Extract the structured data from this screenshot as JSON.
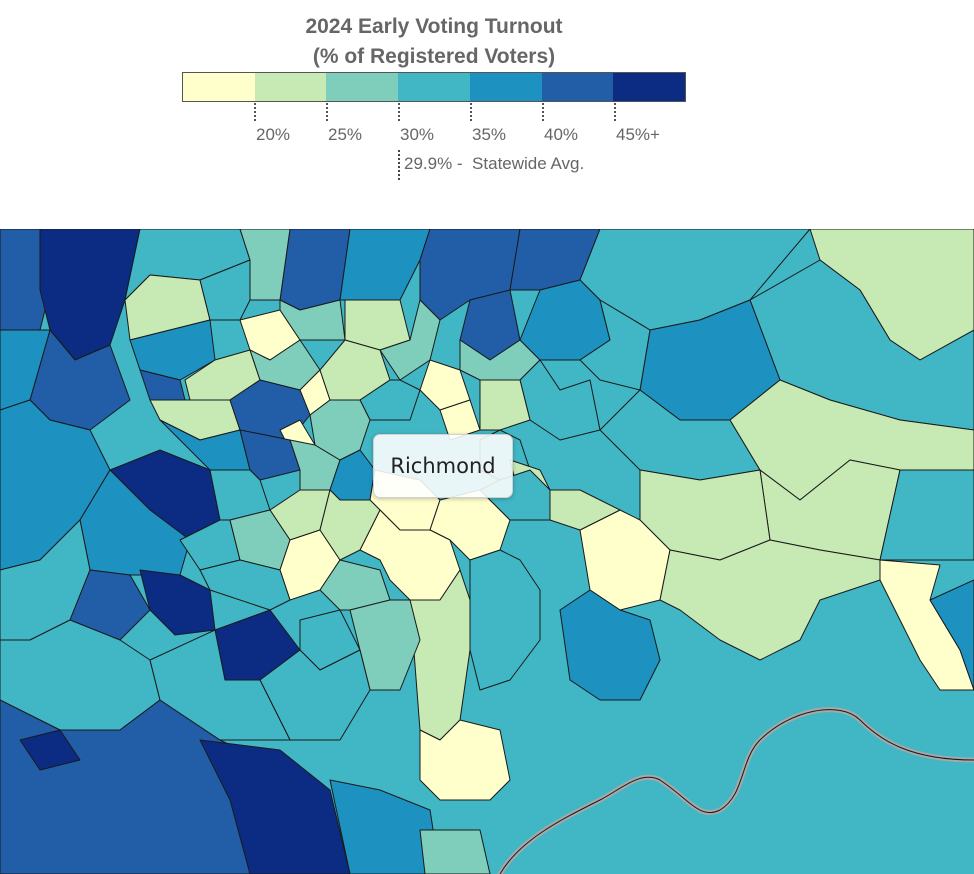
{
  "title": {
    "line1": "2024 Early Voting Turnout",
    "line2": "(% of Registered Voters)"
  },
  "legend": {
    "swatches": [
      "#ffffcc",
      "#c7e9b4",
      "#7fcdbb",
      "#41b6c4",
      "#1d91c0",
      "#225ea8",
      "#0c2c84"
    ],
    "ticks": [
      "20%",
      "25%",
      "30%",
      "35%",
      "40%",
      "45%+"
    ],
    "statewide_avg": {
      "value_text": "29.9% -",
      "label": "Statewide Avg.",
      "value": 29.9
    }
  },
  "map": {
    "city_label": "Richmond",
    "river_color": "#a8a8a8",
    "border_color": "#1a1a1a"
  }
}
